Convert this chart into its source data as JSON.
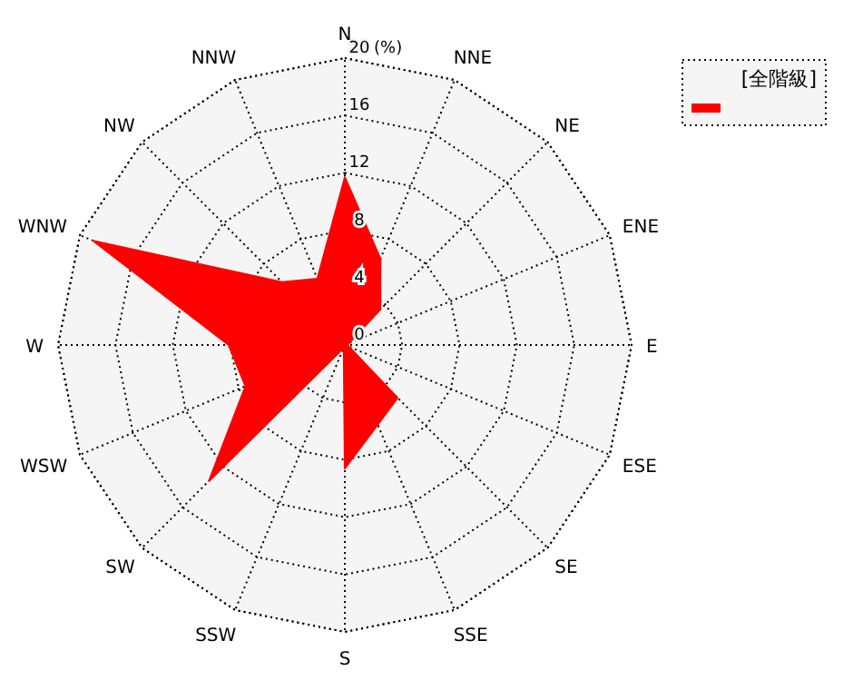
{
  "chart_data": {
    "type": "radar",
    "ylabel": "(%)",
    "categories": [
      "N",
      "NNE",
      "NE",
      "ENE",
      "E",
      "ESE",
      "SE",
      "SSE",
      "S",
      "SSW",
      "SW",
      "WSW",
      "W",
      "WNW",
      "NW",
      "NNW"
    ],
    "series": [
      {
        "name": "[全階級]",
        "color": "#ff0000",
        "values": [
          11.7,
          6.5,
          3.5,
          0.3,
          0.2,
          0.3,
          5.2,
          6.0,
          8.6,
          0.2,
          13.4,
          7.5,
          8.1,
          19.0,
          6.2,
          5.0
        ]
      }
    ],
    "ylim": [
      0,
      20
    ],
    "yticks": [
      0,
      4,
      8,
      12,
      16,
      20
    ],
    "grid": true,
    "line_style": "dotted",
    "legend": "top right"
  }
}
